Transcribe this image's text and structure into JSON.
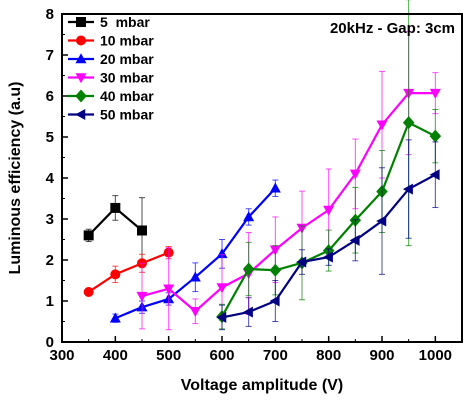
{
  "chart_data": {
    "type": "line",
    "annotation": "20kHz - Gap: 3cm",
    "xlabel": "Voltage amplitude (V)",
    "ylabel": "Luminous efficiency (a.u)",
    "xlim": [
      300,
      1050
    ],
    "ylim": [
      0,
      8
    ],
    "xticks": [
      300,
      400,
      500,
      600,
      700,
      800,
      900,
      1000
    ],
    "yticks": [
      0,
      1,
      2,
      3,
      4,
      5,
      6,
      7,
      8
    ],
    "grid": false,
    "legend_position": "top-left",
    "series": [
      {
        "name": "5  mbar",
        "color": "#000000",
        "marker": "square",
        "x": [
          350,
          400,
          450
        ],
        "y": [
          2.6,
          3.27,
          2.72
        ],
        "err": [
          0.15,
          0.3,
          0.8
        ]
      },
      {
        "name": "10 mbar",
        "color": "#ff0000",
        "marker": "circle",
        "x": [
          350,
          400,
          450,
          500
        ],
        "y": [
          1.22,
          1.65,
          1.92,
          2.18
        ],
        "err": [
          0.05,
          0.2,
          0.22,
          0.15
        ]
      },
      {
        "name": "20 mbar",
        "color": "#0000ff",
        "marker": "triangle-up",
        "x": [
          400,
          450,
          500,
          550,
          600,
          650,
          700
        ],
        "y": [
          0.58,
          0.85,
          1.05,
          1.58,
          2.15,
          3.05,
          3.75
        ],
        "err": [
          0.1,
          0.15,
          0.15,
          0.35,
          0.35,
          0.2,
          0.2
        ]
      },
      {
        "name": "30 mbar",
        "color": "#ff00ff",
        "marker": "triangle-down",
        "x": [
          450,
          500,
          550,
          600,
          650,
          700,
          750,
          800,
          850,
          900,
          950,
          1000
        ],
        "y": [
          1.12,
          1.3,
          0.75,
          1.33,
          1.67,
          2.25,
          2.78,
          3.22,
          4.1,
          5.3,
          6.07,
          6.07
        ],
        "err": [
          0.8,
          1.0,
          0.3,
          0.8,
          1.0,
          0.8,
          0.9,
          1.0,
          0.85,
          1.3,
          1.5,
          0.5
        ]
      },
      {
        "name": "40 mbar",
        "color": "#008000",
        "marker": "diamond",
        "x": [
          600,
          650,
          700,
          750,
          800,
          850,
          900,
          950,
          1000
        ],
        "y": [
          0.62,
          1.78,
          1.75,
          1.93,
          2.23,
          2.97,
          3.67,
          5.35,
          5.02
        ],
        "err": [
          0.3,
          0.65,
          0.6,
          0.9,
          0.5,
          0.8,
          1.0,
          3.0,
          0.65
        ]
      },
      {
        "name": "50 mbar",
        "color": "#000080",
        "marker": "triangle-left",
        "x": [
          600,
          650,
          700,
          750,
          800,
          850,
          900,
          950,
          1000
        ],
        "y": [
          0.6,
          0.73,
          1.0,
          1.95,
          2.07,
          2.48,
          2.95,
          3.73,
          4.08
        ],
        "err": [
          0.3,
          0.35,
          0.5,
          0.3,
          0.2,
          0.5,
          1.3,
          1.2,
          0.8
        ]
      }
    ]
  }
}
